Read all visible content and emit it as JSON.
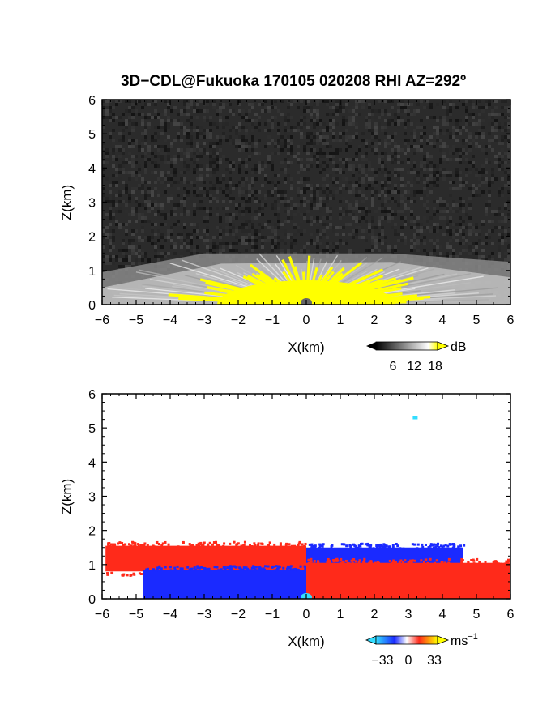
{
  "title": "3D−CDL@Fukuoka 170105 020208 RHI AZ=292º",
  "colors": {
    "yellow": "#ffff00",
    "red": "#ff2a1a",
    "blue": "#1a2aff",
    "cyan": "#33ddff",
    "noise_bg": "#2b2b2b"
  },
  "chart_data": [
    {
      "type": "heatmap",
      "name": "reflectivity",
      "xlabel": "X(km)",
      "ylabel": "Z(km)",
      "xlim": [
        -6,
        6
      ],
      "ylim": [
        0,
        6
      ],
      "xticks": [
        "−6",
        "−5",
        "−4",
        "−3",
        "−2",
        "−1",
        "0",
        "1",
        "2",
        "3",
        "4",
        "5",
        "6"
      ],
      "yticks": [
        "0",
        "1",
        "2",
        "3",
        "4",
        "5",
        "6"
      ],
      "colorbar": {
        "unit": "dB",
        "ticks": [
          "6",
          "12",
          "18"
        ]
      },
      "echo_top_km": 1.5
    },
    {
      "type": "heatmap",
      "name": "doppler_velocity",
      "xlabel": "X(km)",
      "ylabel": "Z(km)",
      "xlim": [
        -6,
        6
      ],
      "ylim": [
        0,
        6
      ],
      "xticks": [
        "−6",
        "−5",
        "−4",
        "−3",
        "−2",
        "−1",
        "0",
        "1",
        "2",
        "3",
        "4",
        "5",
        "6"
      ],
      "yticks": [
        "0",
        "1",
        "2",
        "3",
        "4",
        "5",
        "6"
      ],
      "colorbar": {
        "unit": "ms",
        "unit_exp": "−1",
        "ticks": [
          "−33",
          "0",
          "33"
        ]
      },
      "layers": [
        {
          "region": "upper-left",
          "x": [
            -5.9,
            0.0
          ],
          "z": [
            0.8,
            1.55
          ],
          "color": "red"
        },
        {
          "region": "upper-right",
          "x": [
            0.0,
            4.6
          ],
          "z": [
            1.0,
            1.5
          ],
          "color": "blue"
        },
        {
          "region": "lower-left",
          "x": [
            -4.8,
            0.0
          ],
          "z": [
            0.0,
            0.85
          ],
          "color": "blue"
        },
        {
          "region": "lower-right",
          "x": [
            0.0,
            6.0
          ],
          "z": [
            0.0,
            1.05
          ],
          "color": "red"
        }
      ],
      "isolated_point": {
        "x": 3.2,
        "z": 5.3,
        "color": "cyan"
      }
    }
  ]
}
